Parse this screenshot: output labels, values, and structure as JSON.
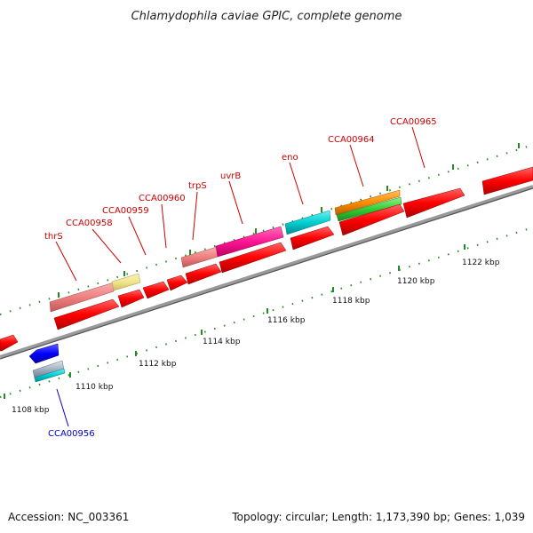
{
  "title": "Chlamydophila caviae GPIC, complete genome",
  "footer": {
    "accession": "Accession: NC_003361",
    "summary": "Topology: circular; Length: 1,173,390 bp; Genes: 1,039"
  },
  "axis": {
    "ticks": [
      "1108 kbp",
      "1110 kbp",
      "1112 kbp",
      "1114 kbp",
      "1116 kbp",
      "1118 kbp",
      "1120 kbp",
      "1122 kbp"
    ]
  },
  "genes": {
    "CCA00956": "CCA00956",
    "thrS": "thrS",
    "CCA00958": "CCA00958",
    "CCA00959": "CCA00959",
    "CCA00960": "CCA00960",
    "trpS": "trpS",
    "uvrB": "uvrB",
    "eno": "eno",
    "CCA00964": "CCA00964",
    "CCA00965": "CCA00965"
  },
  "colors": {
    "red": "#ff0000",
    "salmon": "#f08080",
    "khaki": "#f0e68c",
    "magenta": "#ff1493",
    "cyan": "#00ced1",
    "orange": "#ff8c00",
    "green": "#32cd32",
    "blue": "#0000ff",
    "silver": "#a0b0c0",
    "tick_green": "#228b22",
    "backbone": "#888888"
  }
}
